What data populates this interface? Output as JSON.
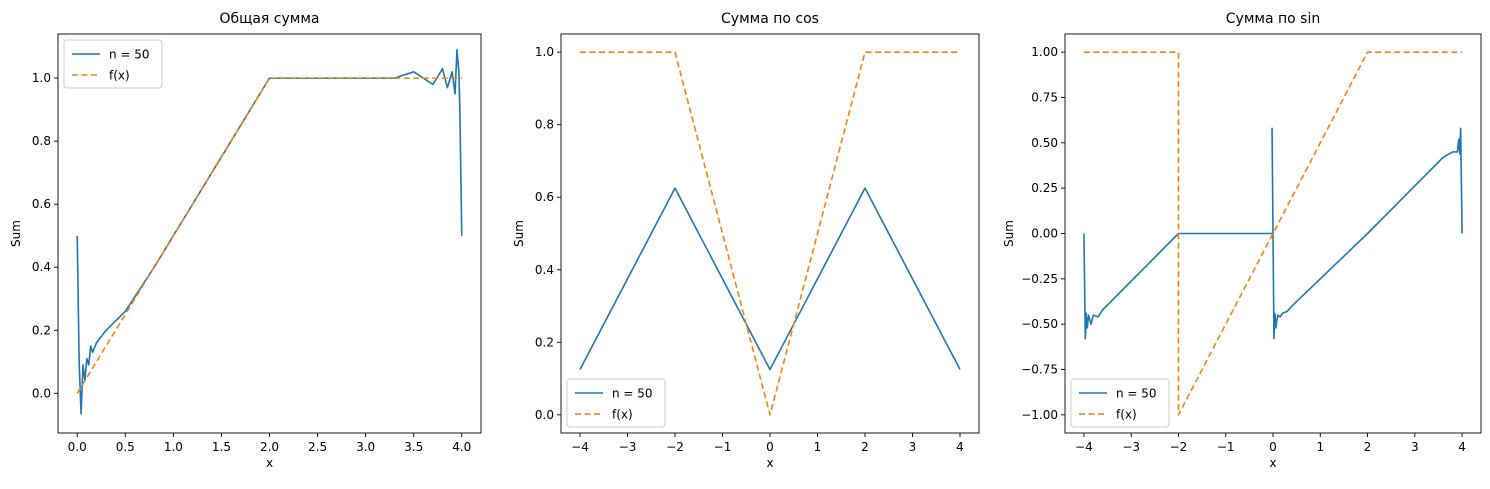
{
  "chart_data": [
    {
      "type": "line",
      "title": "Общая сумма",
      "xlabel": "x",
      "ylabel": "Sum",
      "xlim": [
        -0.2,
        4.2
      ],
      "ylim": [
        -0.126,
        1.14
      ],
      "xticks": [
        0.0,
        0.5,
        1.0,
        1.5,
        2.0,
        2.5,
        3.0,
        3.5,
        4.0
      ],
      "xtick_labels": [
        "0.0",
        "0.5",
        "1.0",
        "1.5",
        "2.0",
        "2.5",
        "3.0",
        "3.5",
        "4.0"
      ],
      "yticks": [
        0.0,
        0.2,
        0.4,
        0.6,
        0.8,
        1.0
      ],
      "ytick_labels": [
        "0.0",
        "0.2",
        "0.4",
        "0.6",
        "0.8",
        "1.0"
      ],
      "legend": "top-left",
      "grid": false,
      "series": [
        {
          "name": "n = 50",
          "style": "solid",
          "color": "#1f77b4",
          "x": [
            0,
            0.02,
            0.04,
            0.06,
            0.08,
            0.1,
            0.12,
            0.14,
            0.16,
            0.2,
            0.3,
            0.5,
            0.8,
            1.0,
            1.2,
            1.5,
            1.8,
            1.95,
            2.0,
            2.05,
            2.2,
            2.5,
            3.0,
            3.3,
            3.5,
            3.7,
            3.8,
            3.85,
            3.9,
            3.93,
            3.95,
            3.97,
            3.98,
            4.0
          ],
          "y": [
            0.5,
            0.1,
            -0.065,
            0.09,
            0.04,
            0.11,
            0.09,
            0.15,
            0.13,
            0.16,
            0.2,
            0.26,
            0.4,
            0.5,
            0.6,
            0.75,
            0.9,
            0.975,
            1.0,
            1.0,
            1.0,
            1.0,
            1.0,
            1.0,
            1.02,
            0.98,
            1.03,
            0.97,
            1.02,
            0.95,
            1.09,
            1.02,
            0.9,
            0.5
          ]
        },
        {
          "name": "f(x)",
          "style": "dashed",
          "color": "#ff7f0e",
          "x": [
            0,
            2,
            4
          ],
          "y": [
            0,
            1,
            1
          ]
        }
      ]
    },
    {
      "type": "line",
      "title": "Сумма по cos",
      "xlabel": "x",
      "ylabel": "Sum",
      "xlim": [
        -4.4,
        4.4
      ],
      "ylim": [
        -0.05,
        1.05
      ],
      "xticks": [
        -4,
        -3,
        -2,
        -1,
        0,
        1,
        2,
        3,
        4
      ],
      "xtick_labels": [
        "−4",
        "−3",
        "−2",
        "−1",
        "0",
        "1",
        "2",
        "3",
        "4"
      ],
      "yticks": [
        0.0,
        0.2,
        0.4,
        0.6,
        0.8,
        1.0
      ],
      "ytick_labels": [
        "0.0",
        "0.2",
        "0.4",
        "0.6",
        "0.8",
        "1.0"
      ],
      "legend": "bottom-left",
      "grid": false,
      "series": [
        {
          "name": "n = 50",
          "style": "solid",
          "color": "#1f77b4",
          "x": [
            -4,
            -2,
            0,
            2,
            4
          ],
          "y": [
            0.125,
            0.625,
            0.125,
            0.625,
            0.125
          ]
        },
        {
          "name": "f(x)",
          "style": "dashed",
          "color": "#ff7f0e",
          "x": [
            -4,
            -2,
            0,
            2,
            4
          ],
          "y": [
            1,
            1,
            0,
            1,
            1
          ]
        }
      ]
    },
    {
      "type": "line",
      "title": "Сумма по sin",
      "xlabel": "x",
      "ylabel": "Sum",
      "xlim": [
        -4.4,
        4.4
      ],
      "ylim": [
        -1.1,
        1.1
      ],
      "xticks": [
        -4,
        -3,
        -2,
        -1,
        0,
        1,
        2,
        3,
        4
      ],
      "xtick_labels": [
        "−4",
        "−3",
        "−2",
        "−1",
        "0",
        "1",
        "2",
        "3",
        "4"
      ],
      "yticks": [
        -1.0,
        -0.75,
        -0.5,
        -0.25,
        0.0,
        0.25,
        0.5,
        0.75,
        1.0
      ],
      "ytick_labels": [
        "−1.00",
        "−0.75",
        "−0.50",
        "−0.25",
        "0.00",
        "0.25",
        "0.50",
        "0.75",
        "1.00"
      ],
      "legend": "bottom-left",
      "grid": false,
      "series": [
        {
          "name": "n = 50",
          "style": "solid",
          "color": "#1f77b4",
          "x": [
            -4,
            -3.97,
            -3.95,
            -3.93,
            -3.9,
            -3.85,
            -3.8,
            -3.7,
            -3.6,
            -2,
            0,
            -0.02,
            0.0,
            0.02,
            0.04,
            0.06,
            0.1,
            0.15,
            0.2,
            0.3,
            0.4,
            2,
            3.6,
            3.8,
            3.9,
            3.93,
            3.95,
            3.97,
            4.0
          ],
          "y": [
            0,
            -0.58,
            -0.44,
            -0.52,
            -0.45,
            -0.5,
            -0.45,
            -0.46,
            -0.42,
            0.0,
            0.0,
            0.58,
            0.0,
            -0.58,
            -0.44,
            -0.52,
            -0.45,
            -0.46,
            -0.44,
            -0.43,
            -0.4,
            0.0,
            0.42,
            0.45,
            0.45,
            0.52,
            0.44,
            0.58,
            0.0
          ]
        },
        {
          "name": "f(x)",
          "style": "dashed",
          "color": "#ff7f0e",
          "x": [
            -4,
            -2,
            -2,
            0,
            2,
            4
          ],
          "y": [
            1,
            1,
            -1,
            0,
            1,
            1
          ]
        }
      ]
    }
  ]
}
